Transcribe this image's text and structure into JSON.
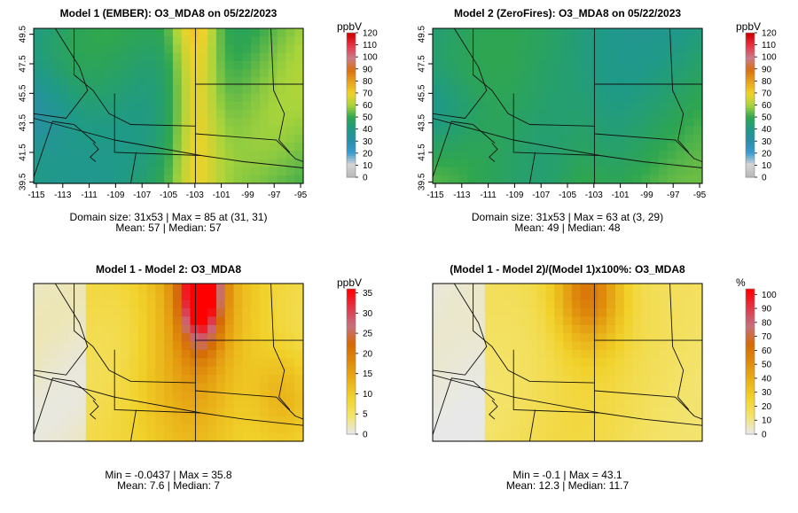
{
  "panels": [
    {
      "id": "p1",
      "title": "Model 1 (EMBER): O3_MDA8 on 05/22/2023",
      "stats_line1": "Domain size: 31x53 | Max = 85 at (31, 31)",
      "stats_line2": "Mean: 57 |  Median: 57",
      "show_axes": true,
      "palette": "abs",
      "legend": {
        "unit": "ppbV",
        "ticks": [
          "0",
          "10",
          "20",
          "30",
          "40",
          "50",
          "60",
          "70",
          "80",
          "90",
          "100",
          "110",
          "120"
        ],
        "min": 0,
        "max": 120
      }
    },
    {
      "id": "p2",
      "title": "Model 2 (ZeroFires): O3_MDA8 on 05/22/2023",
      "stats_line1": "Domain size: 31x53 | Max = 63 at (3, 29)",
      "stats_line2": "Mean: 49 |  Median: 48",
      "show_axes": true,
      "palette": "abs",
      "legend": {
        "unit": "ppbV",
        "ticks": [
          "0",
          "10",
          "20",
          "30",
          "40",
          "50",
          "60",
          "70",
          "80",
          "90",
          "100",
          "110",
          "120"
        ],
        "min": 0,
        "max": 120
      }
    },
    {
      "id": "p3",
      "title": "Model 1 - Model 2: O3_MDA8",
      "stats_line1": "Min = -0.0437 | Max = 35.8",
      "stats_line2": "Mean: 7.6 |  Median: 7",
      "show_axes": false,
      "palette": "diff",
      "legend": {
        "unit": "ppbV",
        "ticks": [
          "0",
          "5",
          "10",
          "15",
          "20",
          "25",
          "30",
          "35"
        ],
        "min": 0,
        "max": 36
      }
    },
    {
      "id": "p4",
      "title": "(Model 1 - Model 2)/(Model 1)x100%: O3_MDA8",
      "stats_line1": "Min = -0.1 | Max = 43.1",
      "stats_line2": "Mean: 12.3 |  Median: 11.7",
      "show_axes": false,
      "palette": "diff",
      "legend": {
        "unit": "%",
        "ticks": [
          "0",
          "10",
          "20",
          "30",
          "40",
          "50",
          "60",
          "70",
          "80",
          "90",
          "100"
        ],
        "min": 0,
        "max": 104
      }
    }
  ],
  "axes": {
    "x_ticks": [
      "-115",
      "-113",
      "-111",
      "-109",
      "-107",
      "-105",
      "-103",
      "-101",
      "-99",
      "-97",
      "-95"
    ],
    "y_ticks": [
      "39.5",
      "41.5",
      "43.5",
      "45.5",
      "47.5",
      "49.5"
    ],
    "x_range": [
      -115.2,
      -94.8
    ],
    "y_range": [
      39.4,
      49.9
    ]
  },
  "palettes": {
    "abs": [
      "#b8b8b8",
      "#d4d4d4",
      "#3a9bd0",
      "#2a8ea8",
      "#1f9a86",
      "#2fa64f",
      "#a8d43c",
      "#f0d22a",
      "#e7a21d",
      "#d96f12",
      "#c97b8a",
      "#e8384a",
      "#d10000"
    ],
    "diff": [
      "#e8e8e8",
      "#f3e36a",
      "#f1d12a",
      "#e9b018",
      "#df8a0c",
      "#d56a08",
      "#c6707e",
      "#e0384a",
      "#ff0000"
    ]
  },
  "colors": {
    "border": "#000000",
    "map_line": "#111111"
  }
}
